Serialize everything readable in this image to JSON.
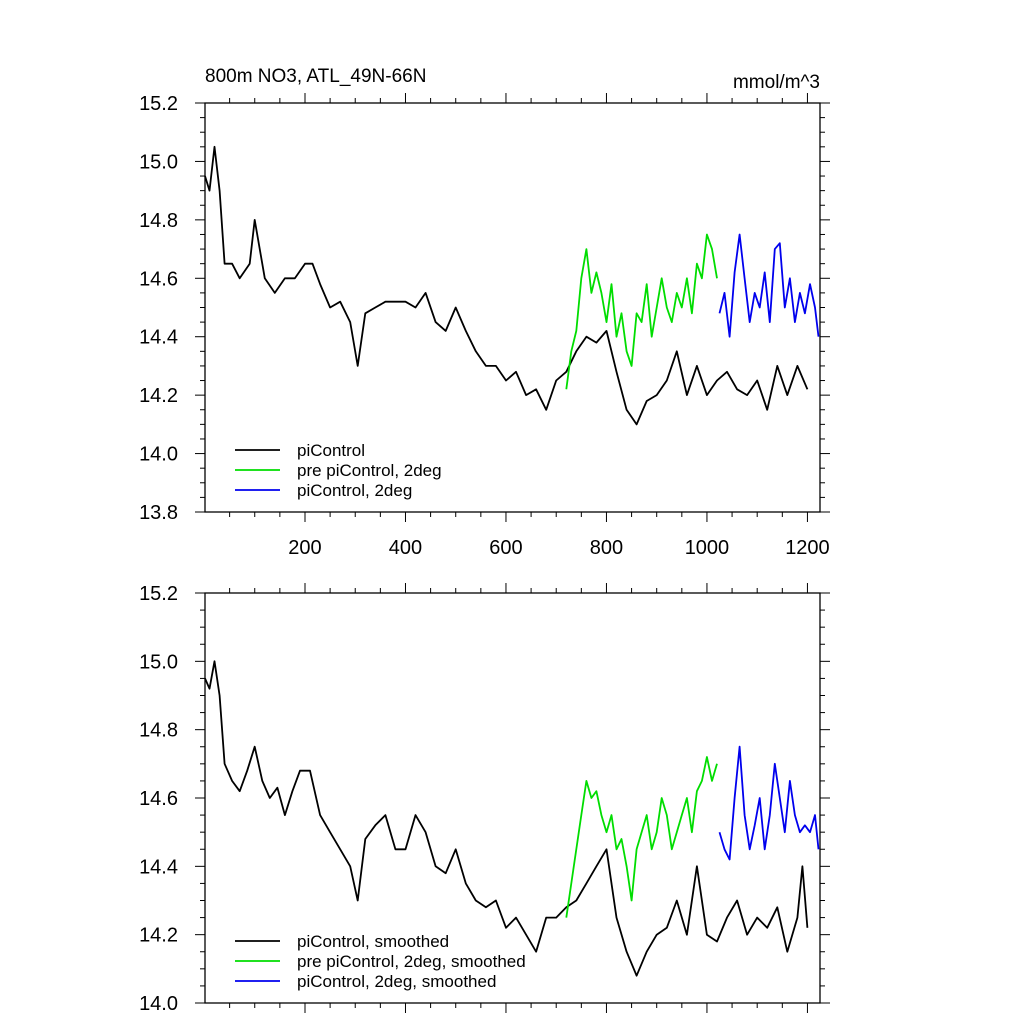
{
  "chart_data": [
    {
      "type": "line",
      "title": "800m NO3, ATL_49N-66N",
      "units": "mmol/m^3",
      "xlim": [
        1,
        1225
      ],
      "ylim": [
        13.8,
        15.2
      ],
      "x_ticks": [
        200,
        400,
        600,
        800,
        1000,
        1200
      ],
      "x_tick_labels": [
        "200",
        "400",
        "600",
        "800",
        "1000",
        "1200"
      ],
      "y_ticks": [
        13.8,
        14.0,
        14.2,
        14.4,
        14.6,
        14.8,
        15.0,
        15.2
      ],
      "y_tick_labels": [
        "13.8",
        "14.0",
        "14.2",
        "14.4",
        "14.6",
        "14.8",
        "15.0",
        "15.2"
      ],
      "grid": false,
      "legend_position": "bottom-left",
      "series": [
        {
          "name": "piControl",
          "color": "#000000",
          "x": [
            1,
            10,
            20,
            30,
            40,
            55,
            70,
            90,
            100,
            120,
            140,
            160,
            180,
            200,
            215,
            230,
            250,
            270,
            290,
            305,
            320,
            340,
            360,
            380,
            400,
            420,
            440,
            460,
            480,
            500,
            520,
            540,
            560,
            580,
            600,
            620,
            640,
            660,
            680,
            700,
            720,
            740,
            760,
            780,
            800,
            820,
            840,
            860,
            880,
            900,
            920,
            940,
            960,
            980,
            1000,
            1020,
            1040,
            1060,
            1080,
            1100,
            1120,
            1140,
            1160,
            1180,
            1200
          ],
          "values": [
            14.95,
            14.9,
            15.05,
            14.9,
            14.65,
            14.65,
            14.6,
            14.65,
            14.8,
            14.6,
            14.55,
            14.6,
            14.6,
            14.65,
            14.65,
            14.58,
            14.5,
            14.52,
            14.45,
            14.3,
            14.48,
            14.5,
            14.52,
            14.52,
            14.52,
            14.5,
            14.55,
            14.45,
            14.42,
            14.5,
            14.42,
            14.35,
            14.3,
            14.3,
            14.25,
            14.28,
            14.2,
            14.22,
            14.15,
            14.25,
            14.28,
            14.35,
            14.4,
            14.38,
            14.42,
            14.28,
            14.15,
            14.1,
            14.18,
            14.2,
            14.25,
            14.35,
            14.2,
            14.3,
            14.2,
            14.25,
            14.28,
            14.22,
            14.2,
            14.25,
            14.15,
            14.3,
            14.2,
            14.3,
            14.22
          ]
        },
        {
          "name": "pre piControl, 2deg",
          "color": "#00dd00",
          "x": [
            720,
            730,
            740,
            750,
            760,
            770,
            780,
            790,
            800,
            810,
            820,
            830,
            840,
            850,
            860,
            870,
            880,
            890,
            900,
            910,
            920,
            930,
            940,
            950,
            960,
            970,
            980,
            990,
            1000,
            1010,
            1020
          ],
          "values": [
            14.22,
            14.35,
            14.42,
            14.6,
            14.7,
            14.55,
            14.62,
            14.55,
            14.45,
            14.58,
            14.4,
            14.48,
            14.35,
            14.3,
            14.48,
            14.45,
            14.58,
            14.4,
            14.5,
            14.6,
            14.5,
            14.45,
            14.55,
            14.5,
            14.6,
            14.48,
            14.65,
            14.6,
            14.75,
            14.7,
            14.6
          ]
        },
        {
          "name": "piControl, 2deg",
          "color": "#0000ee",
          "x": [
            1025,
            1035,
            1045,
            1055,
            1065,
            1075,
            1085,
            1095,
            1105,
            1115,
            1125,
            1135,
            1145,
            1155,
            1165,
            1175,
            1185,
            1195,
            1205,
            1215,
            1222
          ],
          "values": [
            14.48,
            14.55,
            14.4,
            14.62,
            14.75,
            14.6,
            14.45,
            14.55,
            14.5,
            14.62,
            14.45,
            14.7,
            14.72,
            14.5,
            14.6,
            14.45,
            14.55,
            14.48,
            14.58,
            14.5,
            14.4
          ]
        }
      ]
    },
    {
      "type": "line",
      "xlim": [
        1,
        1225
      ],
      "ylim": [
        14.0,
        15.2
      ],
      "y_ticks": [
        14.0,
        14.2,
        14.4,
        14.6,
        14.8,
        15.0,
        15.2
      ],
      "y_tick_labels": [
        "14.0",
        "14.2",
        "14.4",
        "14.6",
        "14.8",
        "15.0",
        "15.2"
      ],
      "grid": false,
      "legend_position": "bottom-left",
      "series": [
        {
          "name": "piControl, smoothed",
          "color": "#000000",
          "x": [
            1,
            10,
            20,
            30,
            40,
            55,
            70,
            85,
            100,
            115,
            130,
            145,
            160,
            175,
            190,
            210,
            230,
            250,
            270,
            290,
            305,
            320,
            340,
            360,
            380,
            400,
            420,
            440,
            460,
            480,
            500,
            520,
            540,
            560,
            580,
            600,
            620,
            640,
            660,
            680,
            700,
            720,
            740,
            760,
            780,
            800,
            820,
            840,
            860,
            880,
            900,
            920,
            940,
            960,
            980,
            1000,
            1020,
            1040,
            1060,
            1080,
            1100,
            1120,
            1140,
            1160,
            1180,
            1190,
            1200
          ],
          "values": [
            14.95,
            14.92,
            15.0,
            14.9,
            14.7,
            14.65,
            14.62,
            14.68,
            14.75,
            14.65,
            14.6,
            14.63,
            14.55,
            14.62,
            14.68,
            14.68,
            14.55,
            14.5,
            14.45,
            14.4,
            14.3,
            14.48,
            14.52,
            14.55,
            14.45,
            14.45,
            14.55,
            14.5,
            14.4,
            14.38,
            14.45,
            14.35,
            14.3,
            14.28,
            14.3,
            14.22,
            14.25,
            14.2,
            14.15,
            14.25,
            14.25,
            14.28,
            14.3,
            14.35,
            14.4,
            14.45,
            14.25,
            14.15,
            14.08,
            14.15,
            14.2,
            14.22,
            14.3,
            14.2,
            14.4,
            14.2,
            14.18,
            14.25,
            14.3,
            14.2,
            14.25,
            14.22,
            14.28,
            14.15,
            14.25,
            14.4,
            14.22
          ]
        },
        {
          "name": "pre piControl, 2deg, smoothed",
          "color": "#00dd00",
          "x": [
            720,
            730,
            740,
            750,
            760,
            770,
            780,
            790,
            800,
            810,
            820,
            830,
            840,
            850,
            860,
            870,
            880,
            890,
            900,
            910,
            920,
            930,
            940,
            950,
            960,
            970,
            980,
            990,
            1000,
            1010,
            1020
          ],
          "values": [
            14.25,
            14.35,
            14.45,
            14.55,
            14.65,
            14.6,
            14.62,
            14.55,
            14.5,
            14.55,
            14.45,
            14.48,
            14.4,
            14.3,
            14.45,
            14.5,
            14.55,
            14.45,
            14.5,
            14.6,
            14.55,
            14.45,
            14.5,
            14.55,
            14.6,
            14.5,
            14.62,
            14.65,
            14.72,
            14.65,
            14.7
          ]
        },
        {
          "name": "piControl, 2deg, smoothed",
          "color": "#0000ee",
          "x": [
            1025,
            1035,
            1045,
            1055,
            1065,
            1075,
            1085,
            1095,
            1105,
            1115,
            1125,
            1135,
            1145,
            1155,
            1165,
            1175,
            1185,
            1195,
            1205,
            1215,
            1222
          ],
          "values": [
            14.5,
            14.45,
            14.42,
            14.6,
            14.75,
            14.55,
            14.45,
            14.52,
            14.6,
            14.45,
            14.55,
            14.7,
            14.6,
            14.5,
            14.65,
            14.55,
            14.5,
            14.52,
            14.5,
            14.55,
            14.45
          ]
        }
      ]
    }
  ]
}
